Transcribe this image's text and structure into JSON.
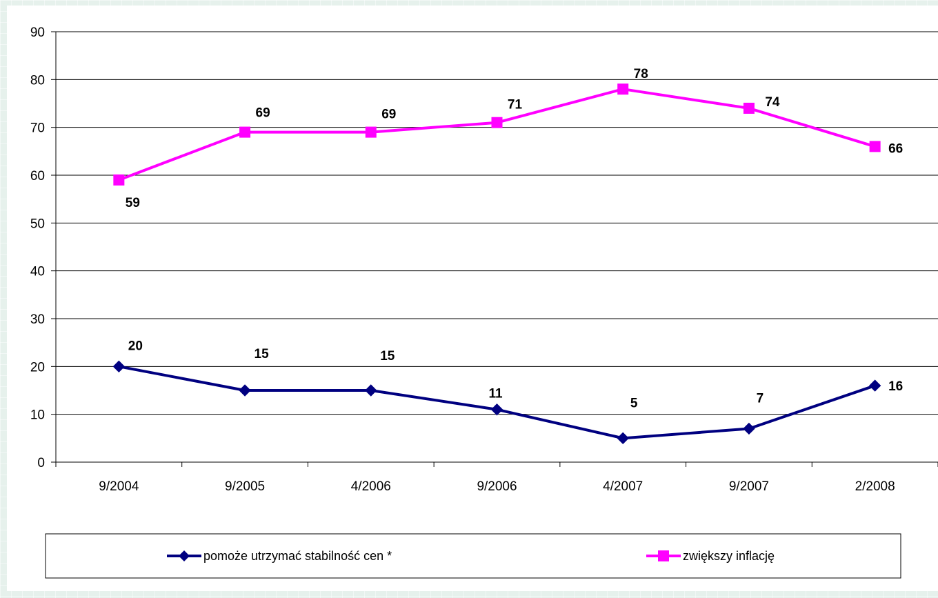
{
  "chart_data": {
    "type": "line",
    "title": "",
    "xlabel": "",
    "ylabel": "",
    "categories": [
      "9/2004",
      "9/2005",
      "4/2006",
      "9/2006",
      "4/2007",
      "9/2007",
      "2/2008"
    ],
    "ylim": [
      0,
      90
    ],
    "yticks": [
      "0",
      "10",
      "20",
      "30",
      "40",
      "50",
      "60",
      "70",
      "80",
      "90"
    ],
    "grid": true,
    "legend_position": "bottom",
    "series": [
      {
        "name": "pomoże utrzymać stabilność cen *",
        "values": [
          20,
          15,
          15,
          11,
          5,
          7,
          16
        ],
        "labels": [
          "20",
          "15",
          "15",
          "11",
          "5",
          "7",
          "16"
        ],
        "color": "#000080",
        "marker": "diamond"
      },
      {
        "name": "zwiększy inflację",
        "values": [
          59,
          69,
          69,
          71,
          78,
          74,
          66
        ],
        "labels": [
          "59",
          "69",
          "69",
          "71",
          "78",
          "74",
          "66"
        ],
        "color": "#ff00ff",
        "marker": "square"
      }
    ]
  }
}
